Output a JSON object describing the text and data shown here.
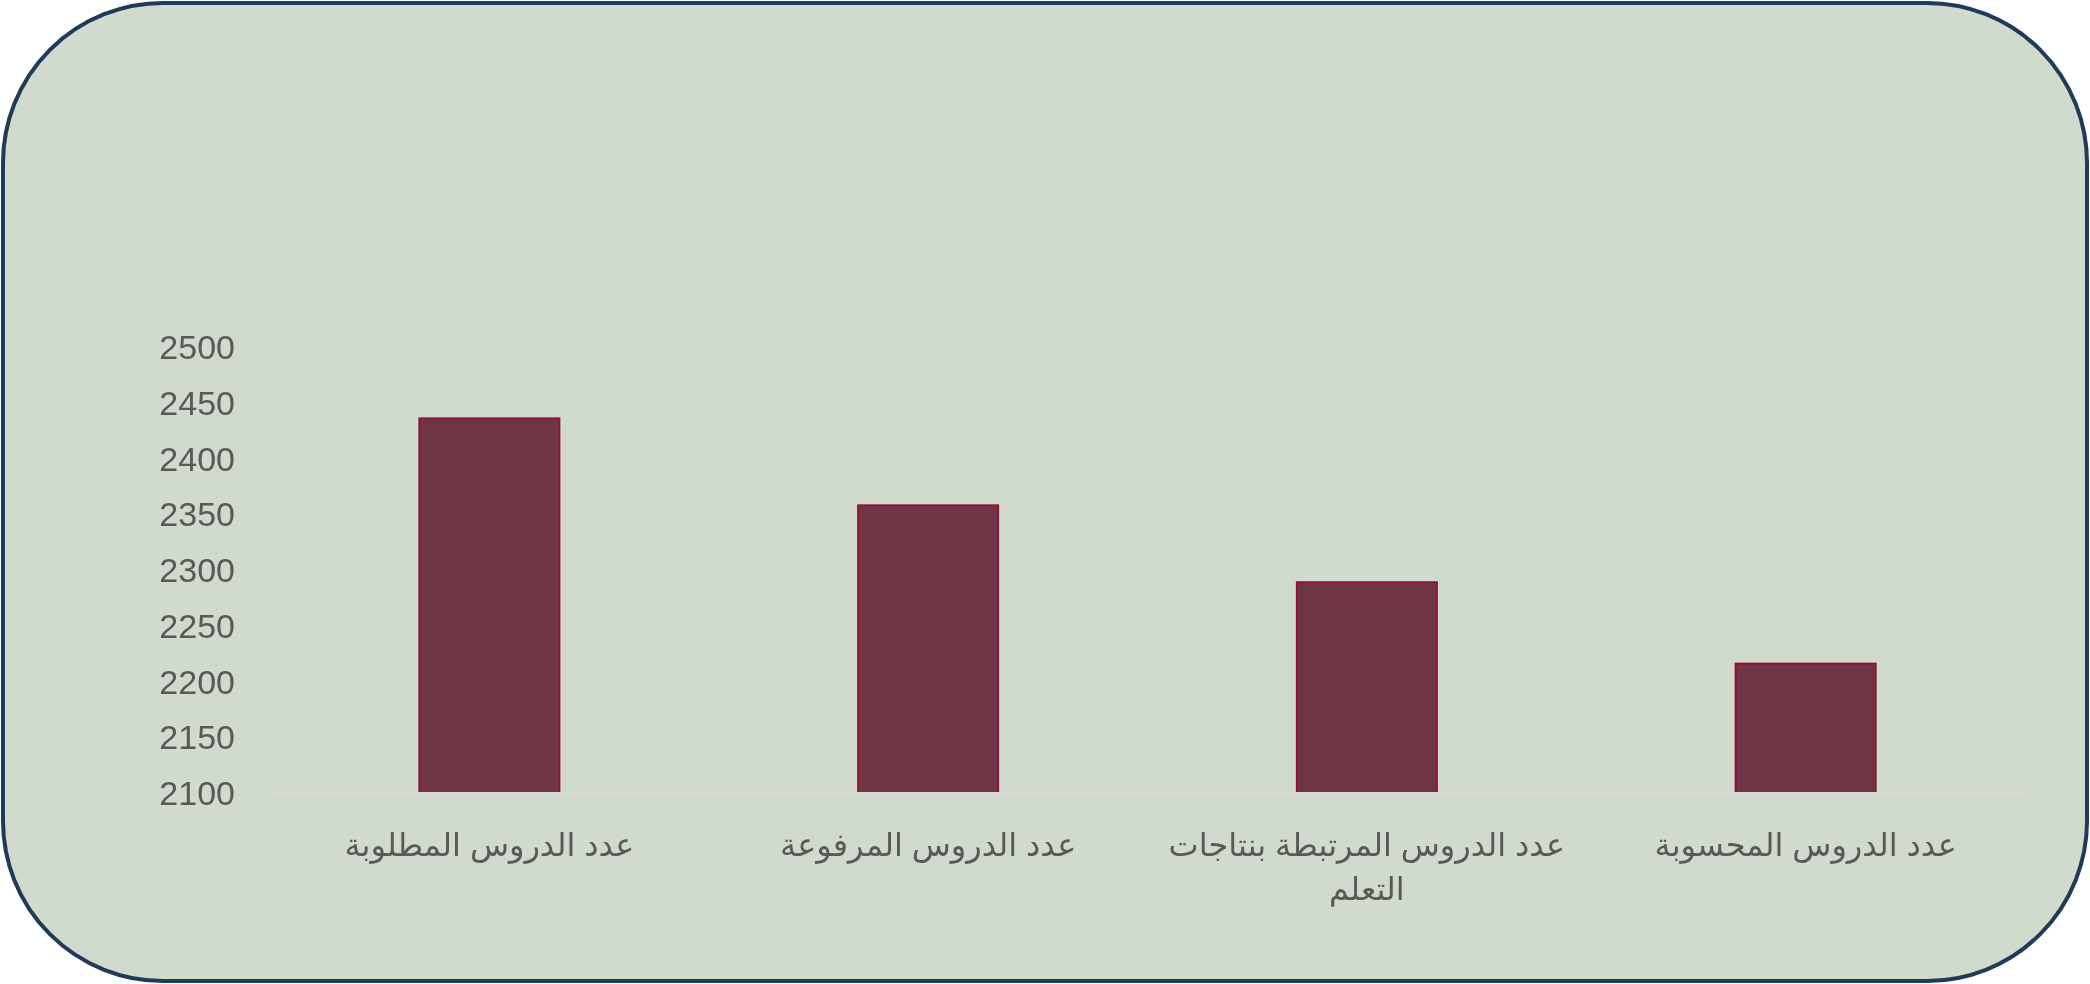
{
  "chart_data": {
    "type": "bar",
    "categories": [
      "عدد الدروس المطلوبة",
      "عدد الدروس المرفوعة",
      "عدد الدروس المرتبطة بنتاجات التعلم",
      "عدد الدروس المحسوبة"
    ],
    "values": [
      2436,
      2358,
      2289,
      2216
    ],
    "color": "#713646",
    "ylim": [
      2100,
      2500
    ],
    "yticks": [
      2100,
      2150,
      2200,
      2250,
      2300,
      2350,
      2400,
      2450,
      2500
    ],
    "grid": false
  }
}
